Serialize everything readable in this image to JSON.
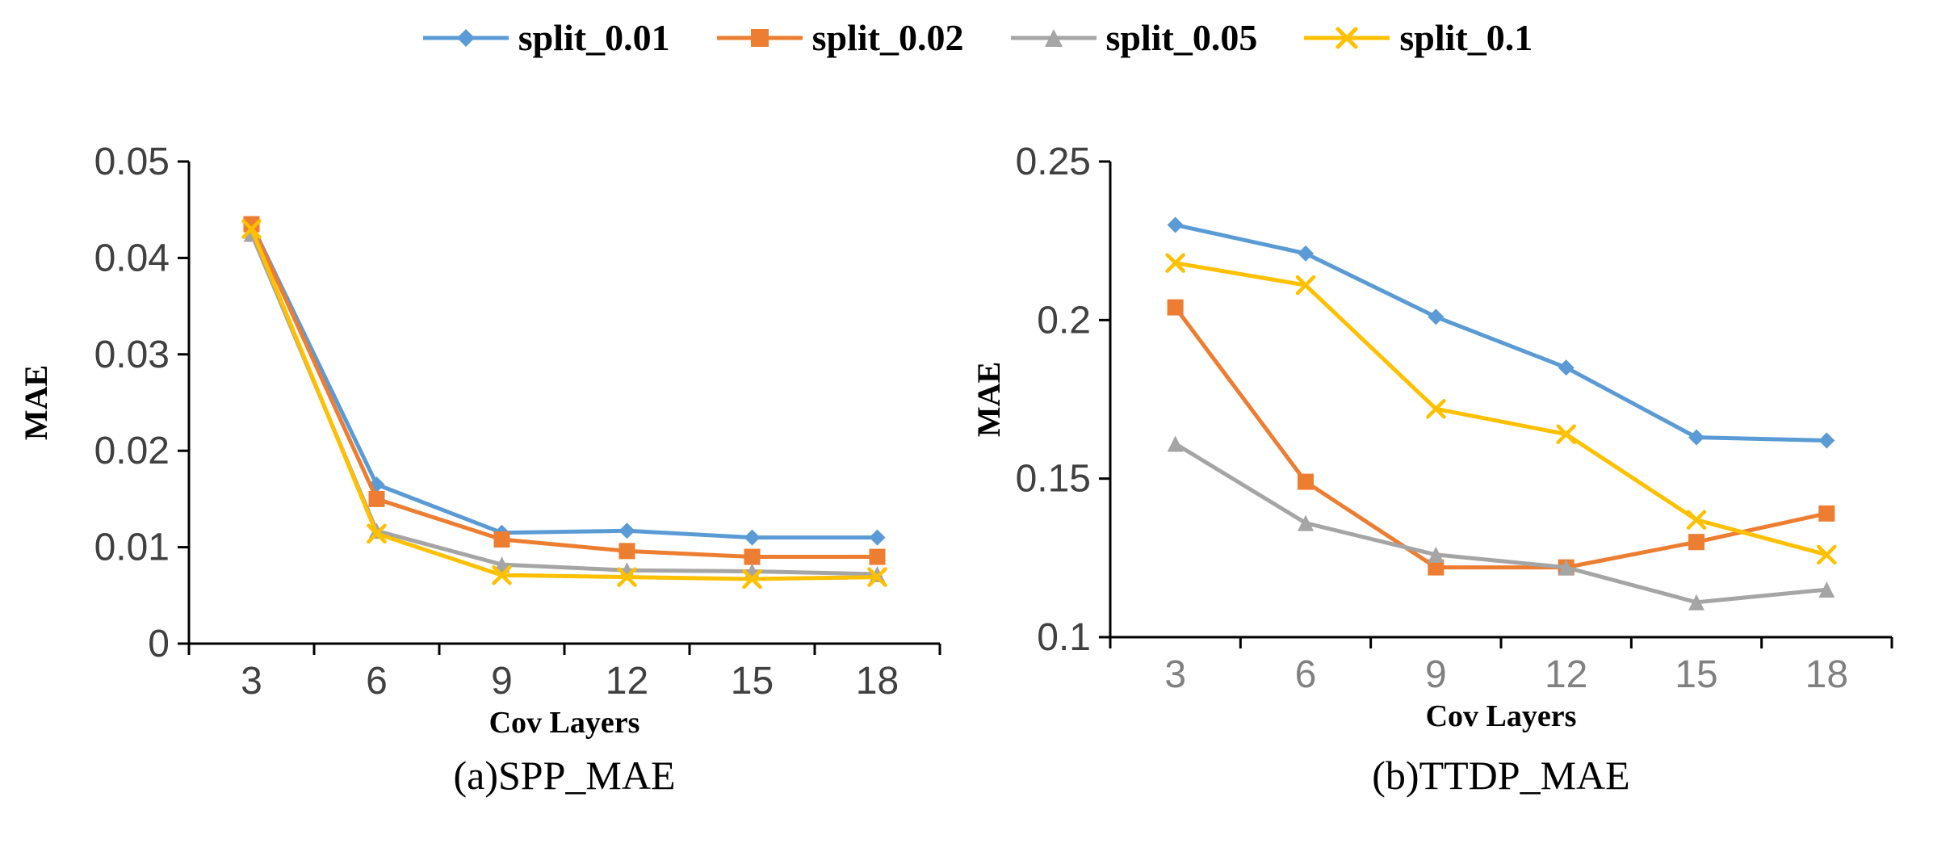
{
  "figure": {
    "background": "#ffffff"
  },
  "legend": {
    "position": "top",
    "items": [
      {
        "label": "split_0.01",
        "color": "#5B9BD5",
        "marker": "diamond"
      },
      {
        "label": "split_0.02",
        "color": "#ED7D31",
        "marker": "square"
      },
      {
        "label": "split_0.05",
        "color": "#A5A5A5",
        "marker": "triangle"
      },
      {
        "label": "split_0.1",
        "color": "#FFC000",
        "marker": "x"
      }
    ]
  },
  "chart_data": [
    {
      "type": "line",
      "title": "(a)SPP_MAE",
      "xlabel": "Cov Layers",
      "ylabel": "MAE",
      "categories": [
        3,
        6,
        9,
        12,
        15,
        18
      ],
      "ylim": [
        0,
        0.05
      ],
      "yticks": [
        0,
        0.01,
        0.02,
        0.03,
        0.04,
        0.05
      ],
      "ytick_labels": [
        "0",
        "0.01",
        "0.02",
        "0.03",
        "0.04",
        "0.05"
      ],
      "grid": false,
      "legend_position": "top-shared",
      "axis_color": "#000000",
      "xtick_label_color": "#404040",
      "ytick_label_color": "#404040",
      "series": [
        {
          "name": "split_0.01",
          "color": "#5B9BD5",
          "marker": "diamond",
          "values": [
            0.0435,
            0.0165,
            0.0115,
            0.0117,
            0.011,
            0.011
          ]
        },
        {
          "name": "split_0.02",
          "color": "#ED7D31",
          "marker": "square",
          "values": [
            0.0435,
            0.015,
            0.0108,
            0.0096,
            0.009,
            0.009
          ]
        },
        {
          "name": "split_0.05",
          "color": "#A5A5A5",
          "marker": "triangle",
          "values": [
            0.0425,
            0.0117,
            0.0082,
            0.0076,
            0.0075,
            0.0072
          ]
        },
        {
          "name": "split_0.1",
          "color": "#FFC000",
          "marker": "x",
          "values": [
            0.043,
            0.0114,
            0.0071,
            0.0069,
            0.0067,
            0.0069
          ]
        }
      ]
    },
    {
      "type": "line",
      "title": "(b)TTDP_MAE",
      "xlabel": "Cov Layers",
      "ylabel": "MAE",
      "categories": [
        3,
        6,
        9,
        12,
        15,
        18
      ],
      "ylim": [
        0.1,
        0.25
      ],
      "yticks": [
        0.1,
        0.15,
        0.2,
        0.25
      ],
      "ytick_labels": [
        "0.1",
        "0.15",
        "0.2",
        "0.25"
      ],
      "grid": false,
      "legend_position": "top-shared",
      "axis_color": "#000000",
      "xtick_label_color": "#808080",
      "ytick_label_color": "#404040",
      "series": [
        {
          "name": "split_0.01",
          "color": "#5B9BD5",
          "marker": "diamond",
          "values": [
            0.23,
            0.221,
            0.201,
            0.185,
            0.163,
            0.162
          ]
        },
        {
          "name": "split_0.02",
          "color": "#ED7D31",
          "marker": "square",
          "values": [
            0.204,
            0.149,
            0.122,
            0.122,
            0.13,
            0.139
          ]
        },
        {
          "name": "split_0.05",
          "color": "#A5A5A5",
          "marker": "triangle",
          "values": [
            0.161,
            0.136,
            0.126,
            0.122,
            0.111,
            0.115
          ]
        },
        {
          "name": "split_0.1",
          "color": "#FFC000",
          "marker": "x",
          "values": [
            0.218,
            0.211,
            0.172,
            0.164,
            0.137,
            0.126
          ]
        }
      ]
    }
  ]
}
